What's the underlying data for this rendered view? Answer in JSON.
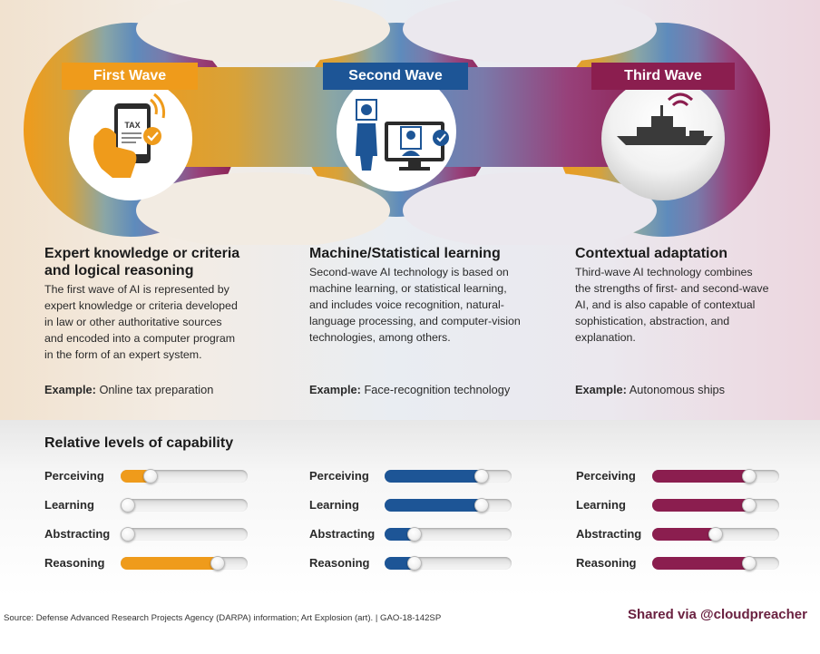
{
  "colors": {
    "first": "#ef9b1b",
    "second": "#1d5596",
    "third": "#8b1e4f"
  },
  "waves": [
    {
      "label": "First Wave",
      "icon": "tax-phone-icon",
      "icon_text": "TAX",
      "heading_lines": [
        "Expert knowledge or criteria",
        "and logical reasoning"
      ],
      "description_lines": [
        "The first wave of AI is represented by",
        "expert knowledge or criteria developed",
        "in law or other authoritative sources",
        "and encoded into a computer program",
        "in the form of an expert system."
      ],
      "example_label": "Example:",
      "example_text": "Online tax preparation"
    },
    {
      "label": "Second Wave",
      "icon": "face-recognition-icon",
      "heading_lines": [
        "Machine/Statistical learning"
      ],
      "description_lines": [
        "Second-wave AI technology is based on",
        "machine learning, or statistical learning,",
        "and includes voice recognition, natural-",
        "language processing, and computer-vision",
        "technologies, among others."
      ],
      "example_label": "Example:",
      "example_text": "Face-recognition technology"
    },
    {
      "label": "Third Wave",
      "icon": "autonomous-ship-icon",
      "heading_lines": [
        "Contextual adaptation"
      ],
      "description_lines": [
        "Third-wave AI technology combines",
        "the strengths of first- and second-wave",
        "AI, and is also capable of contextual",
        "sophistication, abstraction, and",
        "explanation."
      ],
      "example_label": "Example:",
      "example_text": "Autonomous ships"
    }
  ],
  "capability": {
    "title": "Relative levels of capability",
    "groups": [
      {
        "wave": "first",
        "items": [
          {
            "label": "Perceiving",
            "level": 0.2
          },
          {
            "label": "Learning",
            "level": 0.0
          },
          {
            "label": "Abstracting",
            "level": 0.0
          },
          {
            "label": "Reasoning",
            "level": 0.8
          }
        ]
      },
      {
        "wave": "second",
        "items": [
          {
            "label": "Perceiving",
            "level": 0.8
          },
          {
            "label": "Learning",
            "level": 0.8
          },
          {
            "label": "Abstracting",
            "level": 0.2
          },
          {
            "label": "Reasoning",
            "level": 0.2
          }
        ]
      },
      {
        "wave": "third",
        "items": [
          {
            "label": "Perceiving",
            "level": 0.8
          },
          {
            "label": "Learning",
            "level": 0.8
          },
          {
            "label": "Abstracting",
            "level": 0.5
          },
          {
            "label": "Reasoning",
            "level": 0.8
          }
        ]
      }
    ]
  },
  "footer": {
    "source": "Source: Defense Advanced Research Projects Agency (DARPA) information; Art Explosion (art).  |  GAO-18-142SP",
    "shared": "Shared via @cloudpreacher"
  }
}
